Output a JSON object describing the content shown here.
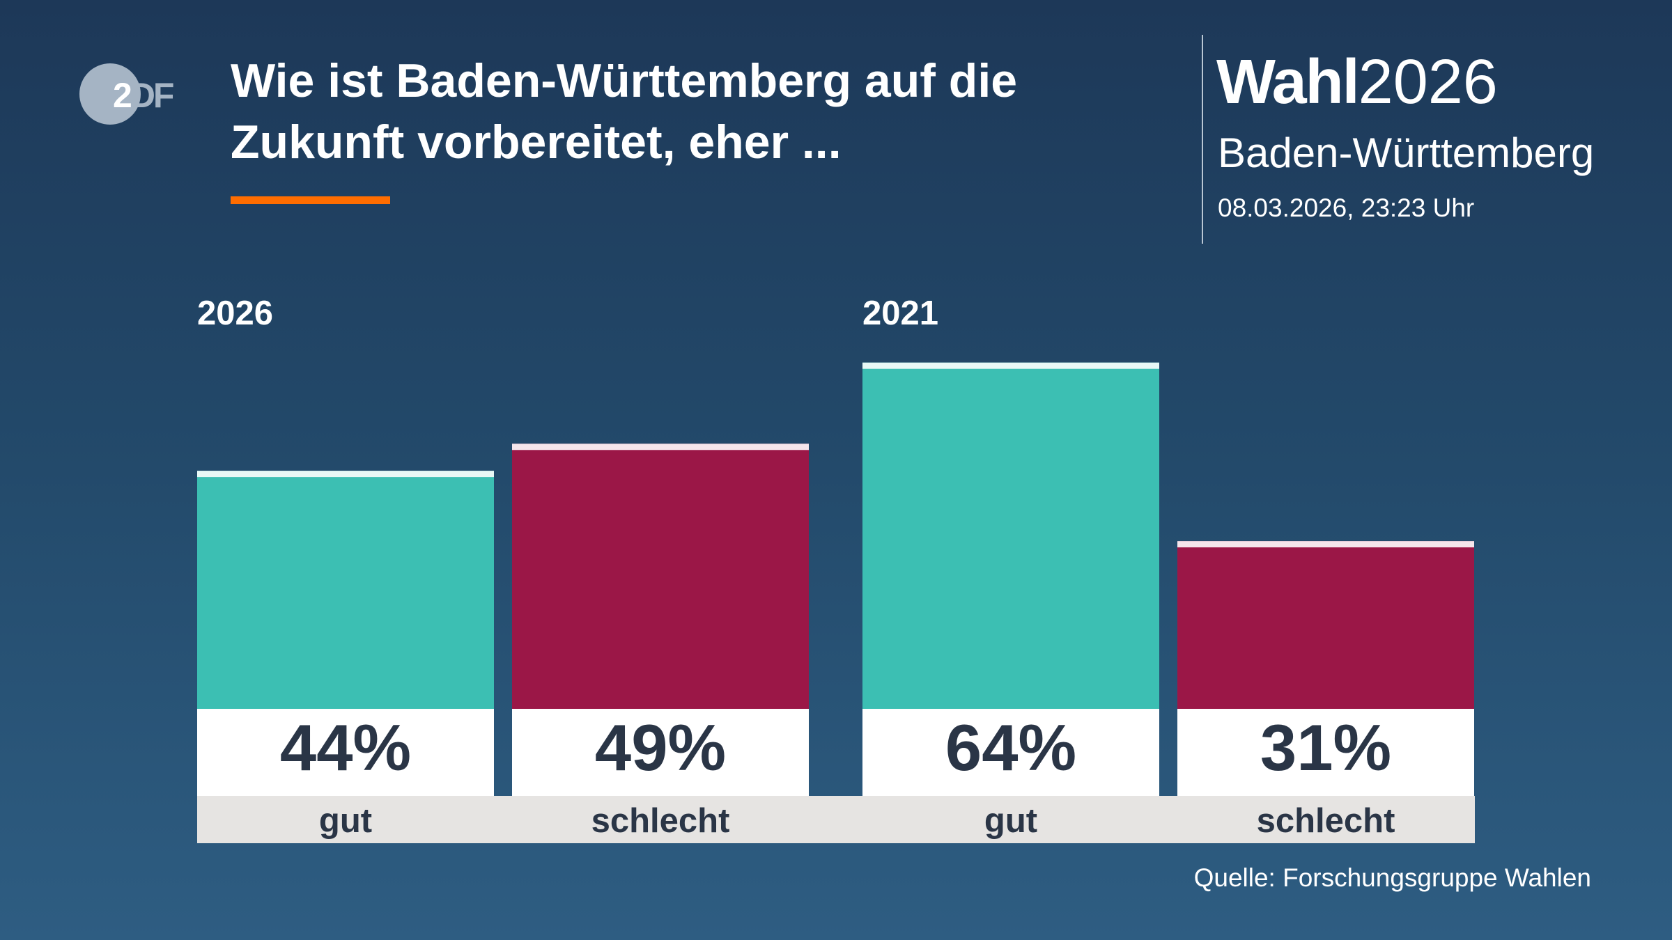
{
  "header": {
    "logo": "ZDF",
    "title": "Wie ist Baden-Württemberg auf die Zukunft vorbereitet, eher ...",
    "brand_bold": "Wahl",
    "brand_year": "2026",
    "region": "Baden-Württemberg",
    "timestamp": "08.03.2026, 23:23 Uhr"
  },
  "chart_data": {
    "type": "bar",
    "groups": [
      {
        "label": "2026",
        "bars": [
          {
            "category": "gut",
            "value": 44,
            "label": "44%"
          },
          {
            "category": "schlecht",
            "value": 49,
            "label": "49%"
          }
        ]
      },
      {
        "label": "2021",
        "bars": [
          {
            "category": "gut",
            "value": 64,
            "label": "64%"
          },
          {
            "category": "schlecht",
            "value": 31,
            "label": "31%"
          }
        ]
      }
    ],
    "colors": {
      "gut": "#3cbfb3",
      "schlecht": "#9b1747"
    },
    "unit": "%"
  },
  "footer": {
    "source": "Quelle: Forschungsgruppe Wahlen"
  }
}
